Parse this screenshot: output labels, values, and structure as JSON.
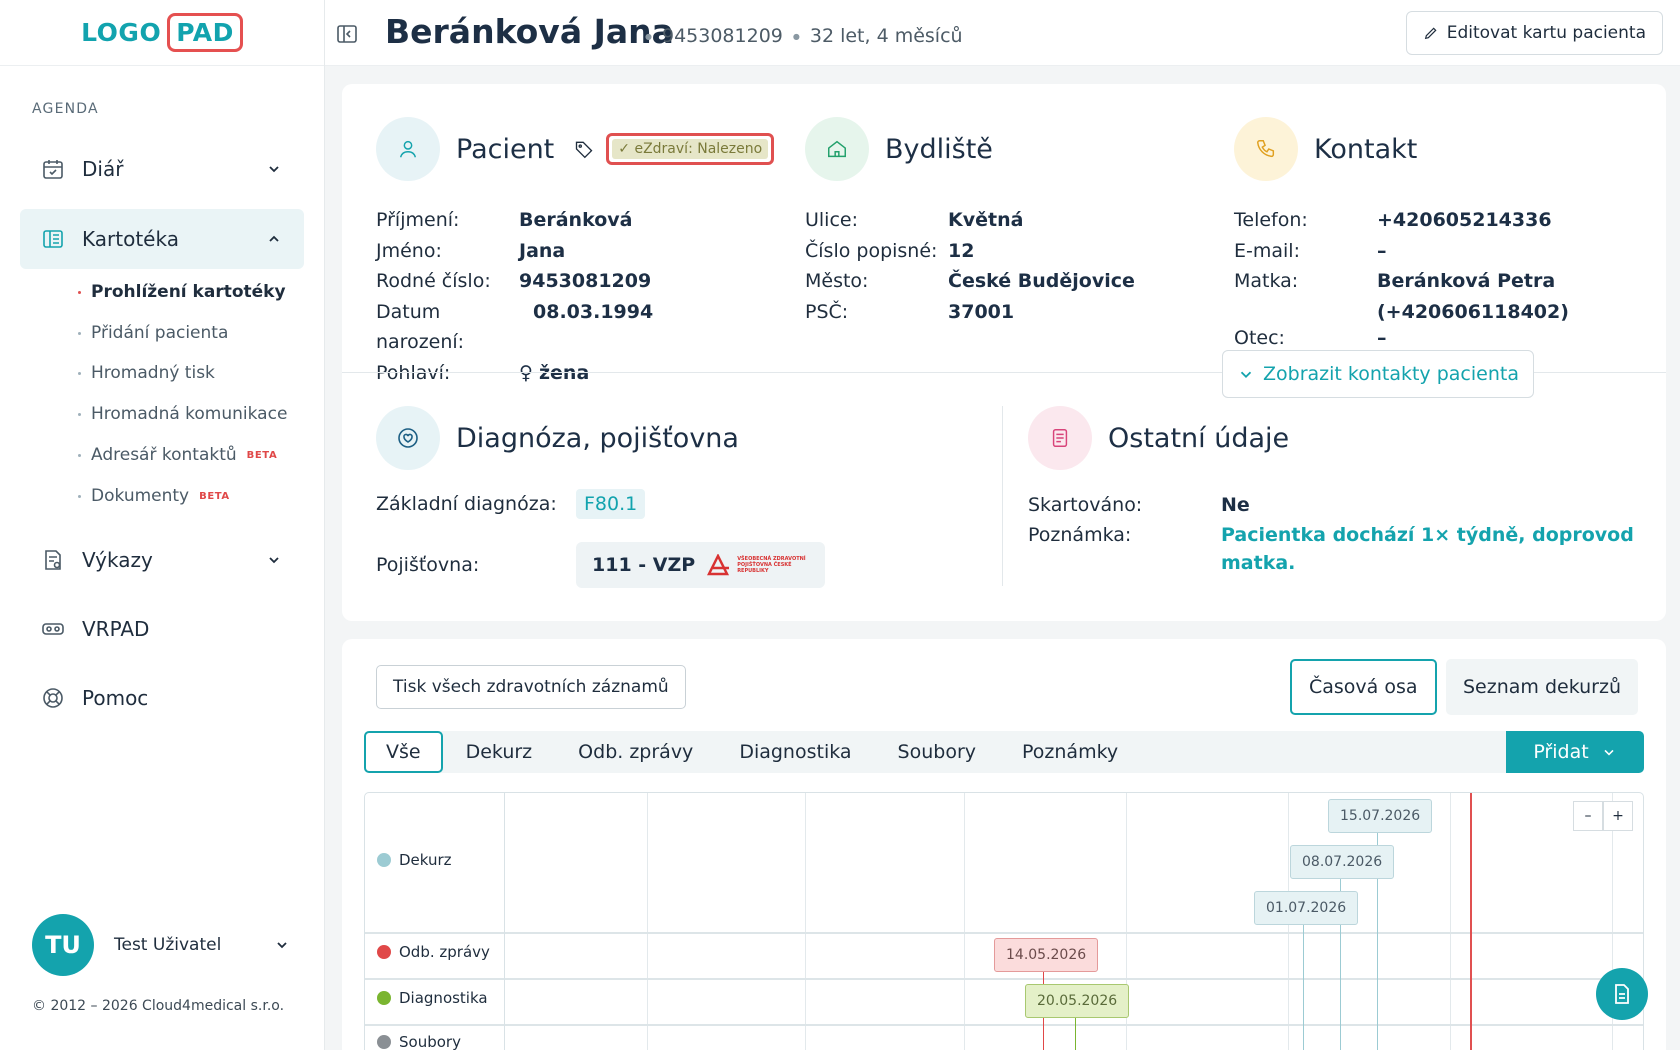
{
  "sidebar": {
    "logo_left": "LOGO",
    "logo_right": "PAD",
    "section_label": "AGENDA",
    "items": [
      {
        "label": "Diář"
      },
      {
        "label": "Kartotéka"
      },
      {
        "label": "Výkazy"
      },
      {
        "label": "VRPAD"
      },
      {
        "label": "Pomoc"
      }
    ],
    "subitems": [
      {
        "label": "Prohlížení kartotéky"
      },
      {
        "label": "Přidání pacienta"
      },
      {
        "label": "Hromadný tisk"
      },
      {
        "label": "Hromadná komunikace"
      },
      {
        "label": "Adresář kontaktů",
        "badge": "BETA"
      },
      {
        "label": "Dokumenty",
        "badge": "BETA"
      }
    ],
    "user": {
      "initials": "TU",
      "name": "Test Uživatel"
    },
    "copyright": "© 2012 – 2026 Cloud4medical s.r.o."
  },
  "header": {
    "name": "Beránková Jana",
    "birth_number": "9453081209",
    "age": "32 let, 4 měsíců",
    "edit_label": "Editovat kartu pacienta"
  },
  "patient": {
    "title": "Pacient",
    "ezdravi": "✓ eZdraví: Nalezeno",
    "rows": [
      {
        "k": "Příjmení:",
        "v": "Beránková"
      },
      {
        "k": "Jméno:",
        "v": "Jana"
      },
      {
        "k": "Rodné číslo:",
        "v": "9453081209"
      },
      {
        "k": "Datum narození:",
        "v": "08.03.1994"
      },
      {
        "k": "Pohlaví:",
        "v": "žena"
      }
    ]
  },
  "address": {
    "title": "Bydliště",
    "rows": [
      {
        "k": "Ulice:",
        "v": "Květná"
      },
      {
        "k": "Číslo popisné:",
        "v": "12"
      },
      {
        "k": "Město:",
        "v": "České Budějovice"
      },
      {
        "k": "PSČ:",
        "v": "37001"
      }
    ]
  },
  "contact": {
    "title": "Kontakt",
    "phone_k": "Telefon:",
    "phone_v": "+420605214336",
    "email_k": "E-mail:",
    "email_v": "–",
    "mother_k": "Matka:",
    "mother_v1": "Beránková Petra",
    "mother_v2": "(+420606118402)",
    "father_k": "Otec:",
    "father_v": "–",
    "show_contacts": "Zobrazit kontakty pacienta"
  },
  "diagnosis": {
    "title": "Diagnóza, pojišťovna",
    "dx_k": "Základní diagnóza:",
    "dx_v": "F80.1",
    "ins_k": "Pojišťovna:",
    "ins_v": "111 - VZP",
    "ins_logo_text": "VŠEOBECNÁ ZDRAVOTNÍ POJIŠŤOVNA ČESKÉ REPUBLIKY"
  },
  "other": {
    "title": "Ostatní údaje",
    "shred_k": "Skartováno:",
    "shred_v": "Ne",
    "note_k": "Poznámka:",
    "note_v1": "Pacientka dochází 1× týdně, doprovod",
    "note_v2": "matka."
  },
  "records": {
    "print_label": "Tisk všech zdravotních záznamů",
    "view_timeline": "Časová osa",
    "view_list": "Seznam dekurzů",
    "filters": [
      "Vše",
      "Dekurz",
      "Odb. zprávy",
      "Diagnostika",
      "Soubory",
      "Poznámky"
    ],
    "add_label": "Přidat",
    "rows": [
      "Dekurz",
      "Odb. zprávy",
      "Diagnostika",
      "Soubory"
    ],
    "events": {
      "dekurz": [
        "15.07.2026",
        "08.07.2026",
        "01.07.2026"
      ],
      "odb": [
        "14.05.2026"
      ],
      "diag": [
        "20.05.2026"
      ]
    },
    "zoom_out": "–",
    "zoom_in": "+"
  },
  "colors": {
    "accent": "#14a3ad",
    "dekurz": "#9ccbd3",
    "odb": "#e04848",
    "diag": "#7ab530",
    "soubory": "#8a8f94"
  }
}
